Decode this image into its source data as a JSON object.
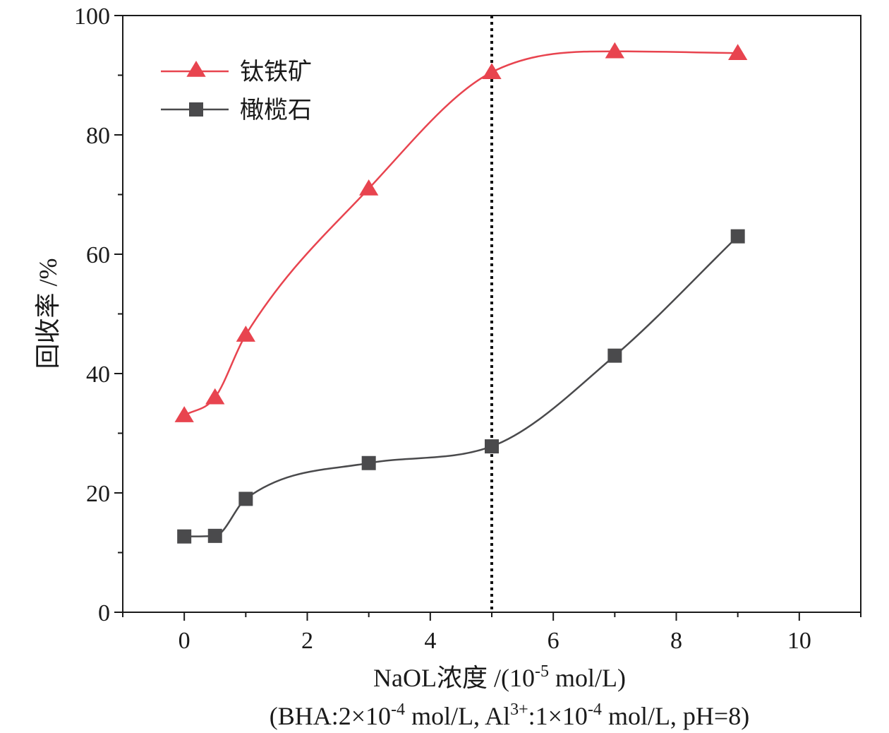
{
  "chart_data": {
    "type": "line",
    "xlabel": "NaOL浓度 /(10-5 mol/L)",
    "xlabel_parts": {
      "main": "NaOL浓度 /(10",
      "sup": "-5",
      "tail": " mol/L)"
    },
    "note": "(BHA:2×10-4 mol/L, Al3+:1×10-4 mol/L, pH=8)",
    "note_parts": {
      "p1": "(BHA:2×10",
      "s1": "-4",
      "p2": " mol/L, Al",
      "s2": "3+",
      "p3": ":1×10",
      "s3": "-4",
      "p4": " mol/L, pH=8)"
    },
    "ylabel": "回收率 /%",
    "xlim": [
      -1,
      11
    ],
    "ylim": [
      0,
      100
    ],
    "xticks": [
      "0",
      "2",
      "4",
      "6",
      "8",
      "10"
    ],
    "yticks": [
      "0",
      "20",
      "40",
      "60",
      "80",
      "100"
    ],
    "grid": false,
    "legend_position": "top-left",
    "reference_line_x": 5,
    "series": [
      {
        "name": "钛铁矿",
        "color": "#e8444f",
        "marker": "triangle",
        "x": [
          0,
          0.5,
          1,
          3,
          5,
          7,
          9
        ],
        "y": [
          33,
          36,
          46.5,
          71,
          90.5,
          94,
          93.7
        ]
      },
      {
        "name": "橄榄石",
        "color": "#4a4a4c",
        "marker": "square",
        "x": [
          0,
          0.5,
          1,
          3,
          5,
          7,
          9
        ],
        "y": [
          12.7,
          12.8,
          19,
          25,
          27.8,
          43,
          63
        ]
      }
    ]
  }
}
